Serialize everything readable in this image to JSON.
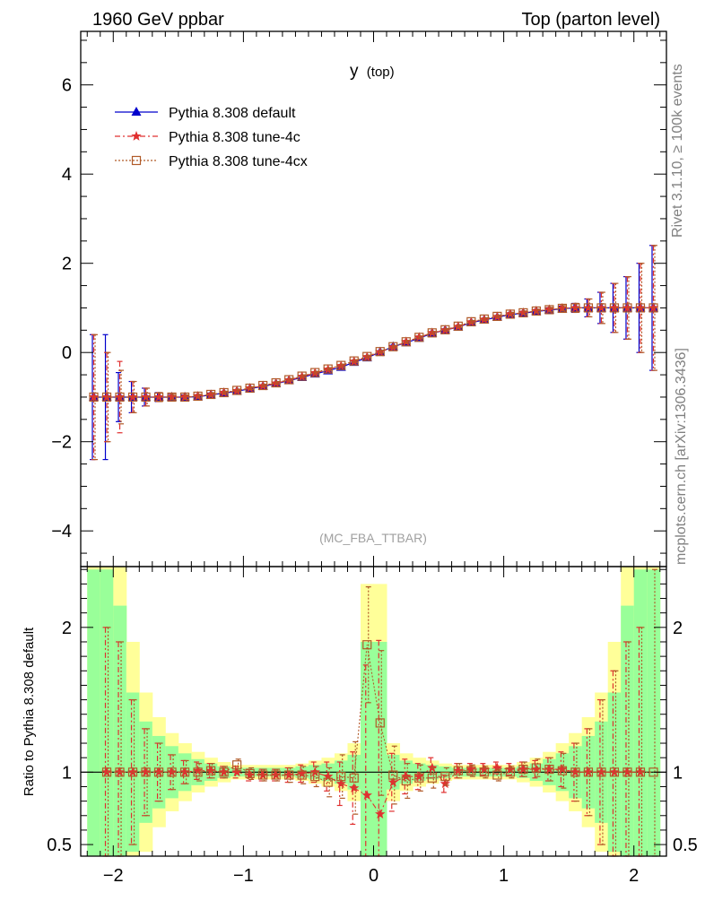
{
  "header": {
    "left": "1960 GeV ppbar",
    "right": "Top (parton level)"
  },
  "side_labels": {
    "rivet": "Rivet 3.1.10, ≥ 100k events",
    "mcplots": "mcplots.cern.ch [arXiv:1306.3436]"
  },
  "colors": {
    "default": "#0000cc",
    "tune4c": "#e03030",
    "tune4cx": "#b05a28",
    "band_inner": "#99ff99",
    "band_outer": "#ffff99"
  },
  "chart_data": [
    {
      "type": "line",
      "title": "y",
      "title_sub": "(top)",
      "analysis_label": "(MC_FBA_TTBAR)",
      "xlim": [
        -2.25,
        2.25
      ],
      "ylim": [
        -4.8,
        7.2
      ],
      "yticks": [
        -4,
        -2,
        0,
        2,
        4,
        6
      ],
      "ytick_labels": [
        "−4",
        "−2",
        "0",
        "2",
        "4",
        "6"
      ],
      "legend": [
        "Pythia 8.308 default",
        "Pythia 8.308 tune-4c",
        "Pythia 8.308 tune-4cx"
      ],
      "legend_position": "top-left",
      "x": [
        -2.15,
        -2.05,
        -1.95,
        -1.85,
        -1.75,
        -1.65,
        -1.55,
        -1.45,
        -1.35,
        -1.25,
        -1.15,
        -1.05,
        -0.95,
        -0.85,
        -0.75,
        -0.65,
        -0.55,
        -0.45,
        -0.35,
        -0.25,
        -0.15,
        -0.05,
        0.05,
        0.15,
        0.25,
        0.35,
        0.45,
        0.55,
        0.65,
        0.75,
        0.85,
        0.95,
        1.05,
        1.15,
        1.25,
        1.35,
        1.45,
        1.55,
        1.65,
        1.75,
        1.85,
        1.95,
        2.05,
        2.15
      ],
      "series": [
        {
          "name": "Pythia 8.308 default",
          "values": [
            -1.0,
            -1.0,
            -1.0,
            -1.0,
            -1.0,
            -1.0,
            -1.0,
            -1.0,
            -0.99,
            -0.95,
            -0.91,
            -0.87,
            -0.81,
            -0.76,
            -0.7,
            -0.63,
            -0.56,
            -0.48,
            -0.41,
            -0.33,
            -0.22,
            -0.12,
            0.01,
            0.13,
            0.22,
            0.32,
            0.43,
            0.5,
            0.57,
            0.67,
            0.73,
            0.79,
            0.85,
            0.88,
            0.92,
            0.95,
            0.98,
            1.0,
            1.0,
            1.0,
            1.0,
            1.0,
            1.0,
            1.0
          ],
          "errors": [
            1.4,
            1.4,
            0.55,
            0.35,
            0.2,
            0.1,
            0.06,
            0.05,
            0.04,
            0.04,
            0.03,
            0.03,
            0.03,
            0.03,
            0.03,
            0.03,
            0.03,
            0.03,
            0.03,
            0.03,
            0.03,
            0.03,
            0.03,
            0.03,
            0.03,
            0.03,
            0.03,
            0.03,
            0.03,
            0.03,
            0.03,
            0.03,
            0.04,
            0.04,
            0.04,
            0.05,
            0.06,
            0.1,
            0.2,
            0.35,
            0.55,
            0.7,
            1.0,
            1.4
          ]
        },
        {
          "name": "Pythia 8.308 tune-4c",
          "values": [
            -1.0,
            -1.0,
            -1.0,
            -1.0,
            -1.0,
            -1.0,
            -1.0,
            -1.0,
            -0.98,
            -0.95,
            -0.9,
            -0.86,
            -0.8,
            -0.75,
            -0.69,
            -0.62,
            -0.54,
            -0.46,
            -0.38,
            -0.3,
            -0.2,
            -0.1,
            0.01,
            0.12,
            0.24,
            0.34,
            0.44,
            0.5,
            0.58,
            0.68,
            0.74,
            0.8,
            0.86,
            0.89,
            0.93,
            0.96,
            0.99,
            1.0,
            1.0,
            1.0,
            1.0,
            1.0,
            1.0,
            1.0
          ],
          "errors": [
            1.4,
            1.0,
            0.8,
            0.35,
            0.2,
            0.1,
            0.06,
            0.05,
            0.04,
            0.04,
            0.03,
            0.03,
            0.03,
            0.03,
            0.03,
            0.03,
            0.03,
            0.03,
            0.03,
            0.03,
            0.03,
            0.03,
            0.03,
            0.03,
            0.03,
            0.03,
            0.03,
            0.03,
            0.03,
            0.03,
            0.03,
            0.03,
            0.04,
            0.04,
            0.04,
            0.05,
            0.06,
            0.1,
            0.2,
            0.35,
            0.55,
            0.7,
            1.0,
            1.4
          ]
        },
        {
          "name": "Pythia 8.308 tune-4cx",
          "values": [
            -1.0,
            -1.0,
            -1.0,
            -1.0,
            -1.0,
            -1.0,
            -1.0,
            -1.0,
            -0.98,
            -0.94,
            -0.9,
            -0.85,
            -0.8,
            -0.74,
            -0.68,
            -0.61,
            -0.53,
            -0.45,
            -0.37,
            -0.29,
            -0.19,
            -0.09,
            0.02,
            0.13,
            0.24,
            0.34,
            0.44,
            0.51,
            0.59,
            0.69,
            0.75,
            0.81,
            0.86,
            0.89,
            0.93,
            0.96,
            0.99,
            1.0,
            1.0,
            1.0,
            1.0,
            1.0,
            1.0,
            1.0
          ],
          "errors": [
            1.4,
            1.0,
            0.6,
            0.35,
            0.2,
            0.1,
            0.06,
            0.05,
            0.04,
            0.04,
            0.03,
            0.03,
            0.03,
            0.03,
            0.03,
            0.03,
            0.03,
            0.03,
            0.03,
            0.03,
            0.03,
            0.03,
            0.03,
            0.03,
            0.03,
            0.03,
            0.03,
            0.03,
            0.03,
            0.03,
            0.03,
            0.03,
            0.04,
            0.04,
            0.04,
            0.05,
            0.06,
            0.1,
            0.2,
            0.35,
            0.55,
            0.7,
            1.0,
            1.4
          ]
        }
      ]
    },
    {
      "type": "line",
      "title": "ratio",
      "ylabel": "Ratio to Pythia 8.308 default",
      "xlim": [
        -2.25,
        2.25
      ],
      "ylim": [
        0.42,
        2.42
      ],
      "xticks": [
        -2,
        -1,
        0,
        1,
        2
      ],
      "xtick_labels": [
        "−2",
        "−1",
        "0",
        "1",
        "2"
      ],
      "yticks": [
        0.5,
        1,
        2
      ],
      "ytick_labels": [
        "0.5",
        "1",
        "2"
      ],
      "reference_line": 1,
      "bands": {
        "inner_halfwidth": [
          1.4,
          1.4,
          1.15,
          0.55,
          0.35,
          0.25,
          0.18,
          0.13,
          0.09,
          0.06,
          0.04,
          0.03,
          0.03,
          0.03,
          0.03,
          0.03,
          0.04,
          0.05,
          0.06,
          0.08,
          0.12,
          0.9,
          0.9,
          0.12,
          0.08,
          0.06,
          0.05,
          0.04,
          0.03,
          0.03,
          0.03,
          0.03,
          0.03,
          0.04,
          0.06,
          0.09,
          0.13,
          0.18,
          0.25,
          0.35,
          0.55,
          1.15,
          1.4,
          1.4
        ],
        "outer_halfwidth": [
          1.5,
          1.5,
          1.5,
          0.9,
          0.55,
          0.38,
          0.27,
          0.2,
          0.14,
          0.1,
          0.07,
          0.05,
          0.05,
          0.05,
          0.05,
          0.05,
          0.06,
          0.08,
          0.1,
          0.13,
          0.2,
          1.3,
          1.3,
          0.2,
          0.13,
          0.1,
          0.08,
          0.06,
          0.05,
          0.05,
          0.05,
          0.05,
          0.05,
          0.07,
          0.1,
          0.14,
          0.2,
          0.27,
          0.38,
          0.55,
          0.9,
          1.5,
          1.5,
          1.5
        ]
      },
      "x": [
        -2.15,
        -2.05,
        -1.95,
        -1.85,
        -1.75,
        -1.65,
        -1.55,
        -1.45,
        -1.35,
        -1.25,
        -1.15,
        -1.05,
        -0.95,
        -0.85,
        -0.75,
        -0.65,
        -0.55,
        -0.45,
        -0.35,
        -0.25,
        -0.15,
        -0.05,
        0.05,
        0.15,
        0.25,
        0.35,
        0.45,
        0.55,
        0.65,
        0.75,
        0.85,
        0.95,
        1.05,
        1.15,
        1.25,
        1.35,
        1.45,
        1.55,
        1.65,
        1.75,
        1.85,
        1.95,
        2.05,
        2.15
      ],
      "series": [
        {
          "name": "Pythia 8.308 tune-4c",
          "values": [
            null,
            1.0,
            1.0,
            1.0,
            1.0,
            1.0,
            1.0,
            1.0,
            1.01,
            1.01,
            1.0,
            1.0,
            0.98,
            0.98,
            0.98,
            0.98,
            0.99,
            1.0,
            0.97,
            0.92,
            0.89,
            0.84,
            0.71,
            0.93,
            0.97,
            0.97,
            1.03,
            0.92,
            1.01,
            1.02,
            1.02,
            1.03,
            1.02,
            1.02,
            1.02,
            1.02,
            1.02,
            1.0,
            1.0,
            1.0,
            1.0,
            1.0,
            1.0,
            null
          ],
          "errors": [
            null,
            1.0,
            0.9,
            0.5,
            0.3,
            0.2,
            0.12,
            0.08,
            0.06,
            0.05,
            0.04,
            0.04,
            0.04,
            0.04,
            0.04,
            0.05,
            0.06,
            0.07,
            0.1,
            0.15,
            0.25,
            0.9,
            1.2,
            0.2,
            0.12,
            0.09,
            0.07,
            0.06,
            0.05,
            0.04,
            0.04,
            0.04,
            0.04,
            0.05,
            0.06,
            0.08,
            0.12,
            0.2,
            0.3,
            0.5,
            0.7,
            0.9,
            1.0,
            null
          ]
        },
        {
          "name": "Pythia 8.308 tune-4cx",
          "values": [
            null,
            1.0,
            1.0,
            1.0,
            1.0,
            1.0,
            1.0,
            1.0,
            1.0,
            1.01,
            1.0,
            1.05,
            0.99,
            0.98,
            0.98,
            0.98,
            0.98,
            0.97,
            0.93,
            0.97,
            0.96,
            1.88,
            1.34,
            0.98,
            0.94,
            0.96,
            0.96,
            0.97,
            1.01,
            1.01,
            1.0,
            0.98,
            1.0,
            1.02,
            1.03,
            1.02,
            1.01,
            1.0,
            1.0,
            1.0,
            1.0,
            1.0,
            1.0,
            1.0
          ],
          "errors": [
            null,
            1.0,
            0.9,
            0.5,
            0.3,
            0.2,
            0.12,
            0.08,
            0.06,
            0.05,
            0.04,
            0.04,
            0.04,
            0.04,
            0.04,
            0.05,
            0.06,
            0.07,
            0.1,
            0.15,
            0.25,
            0.4,
            0.5,
            0.2,
            0.12,
            0.09,
            0.07,
            0.06,
            0.05,
            0.04,
            0.04,
            0.04,
            0.04,
            0.05,
            0.06,
            0.08,
            0.12,
            0.2,
            0.3,
            0.5,
            0.7,
            0.9,
            1.0,
            1.4
          ]
        }
      ]
    }
  ]
}
